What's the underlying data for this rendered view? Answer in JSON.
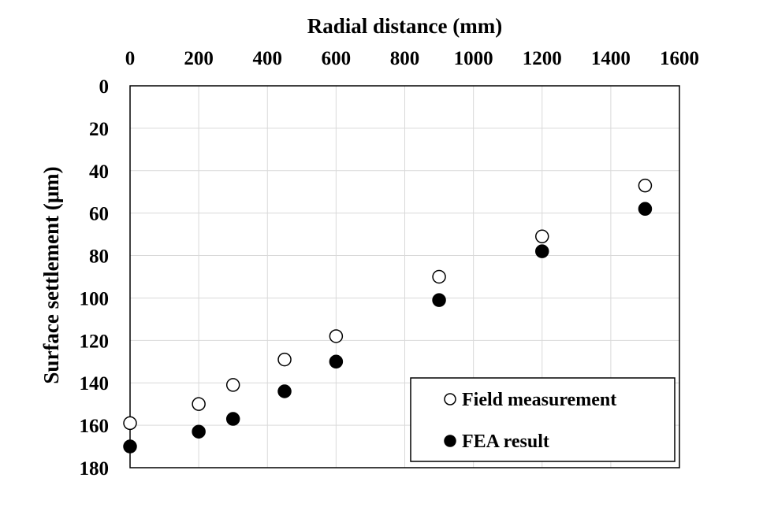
{
  "chart_data": {
    "type": "scatter",
    "title": "",
    "xlabel": "Radial distance (mm)",
    "ylabel": "Surface settlement (μm)",
    "xlim": [
      0,
      1600
    ],
    "ylim": [
      0,
      180
    ],
    "x_ticks": [
      0,
      200,
      400,
      600,
      800,
      1000,
      1200,
      1400,
      1600
    ],
    "y_ticks": [
      0,
      20,
      40,
      60,
      80,
      100,
      120,
      140,
      160,
      180
    ],
    "x_axis_position": "top",
    "y_axis_inverted": true,
    "grid": true,
    "legend_position": "bottom-right",
    "series": [
      {
        "name": "Field measurement",
        "marker": "open-circle",
        "color": "#000000",
        "x": [
          0,
          200,
          300,
          450,
          600,
          900,
          1200,
          1500
        ],
        "y": [
          159,
          150,
          141,
          129,
          118,
          90,
          71,
          47
        ]
      },
      {
        "name": "FEA result",
        "marker": "filled-circle",
        "color": "#000000",
        "x": [
          0,
          200,
          300,
          450,
          600,
          900,
          1200,
          1500
        ],
        "y": [
          170,
          163,
          157,
          144,
          130,
          101,
          78,
          58
        ]
      }
    ]
  }
}
